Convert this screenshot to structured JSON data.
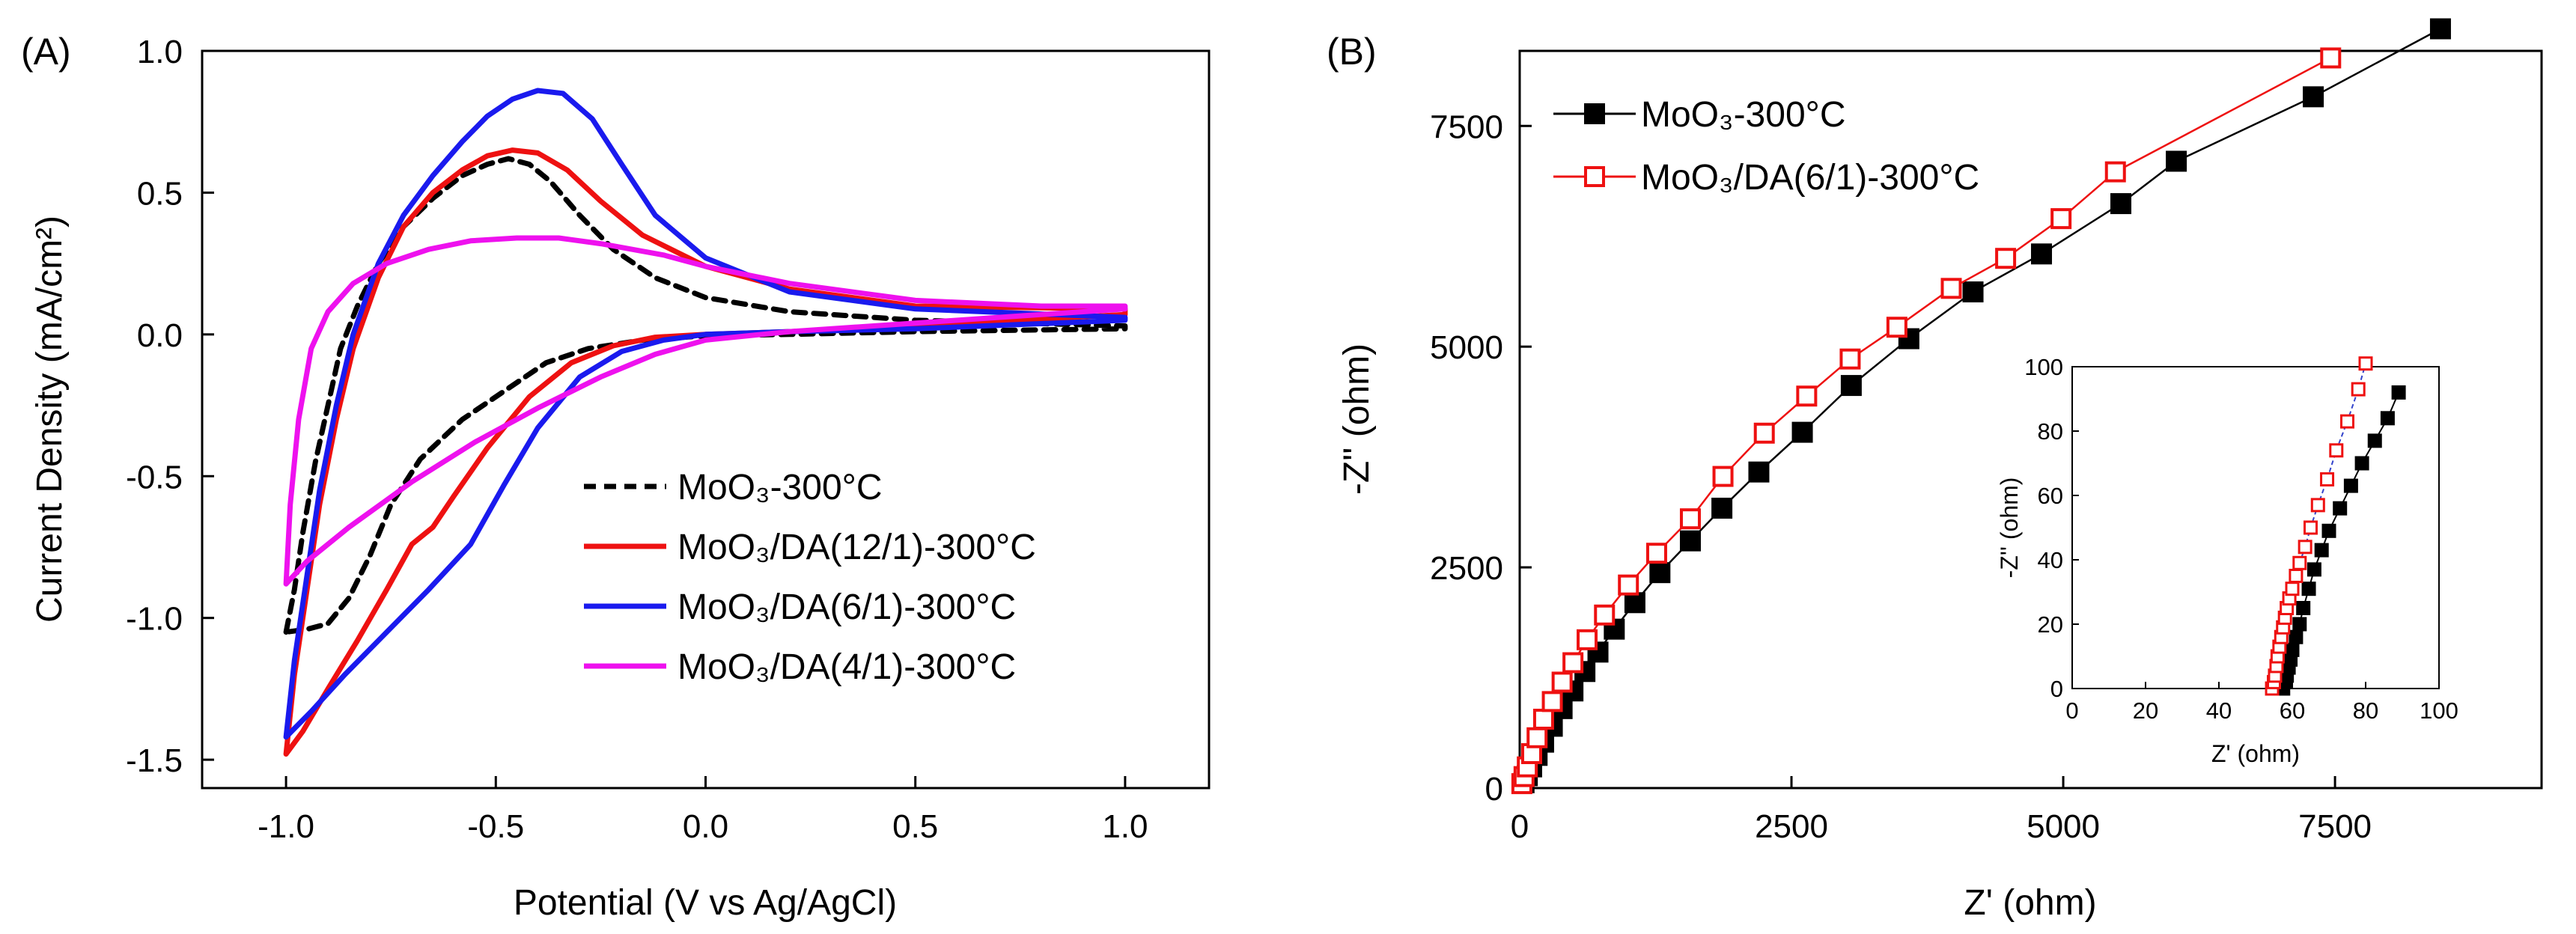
{
  "chart_data": [
    {
      "panel_label": "(A)",
      "type": "line",
      "title": "",
      "xlabel": "Potential (V vs Ag/AgCl)",
      "ylabel": "Current Density (mA/cm²)",
      "xlim": [
        -1.2,
        1.2
      ],
      "ylim": [
        -1.6,
        1.0
      ],
      "xticks": [
        -1.0,
        -0.5,
        0.0,
        0.5,
        1.0
      ],
      "xtick_labels": [
        "-1.0",
        "-0.5",
        "0.0",
        "0.5",
        "1.0"
      ],
      "yticks": [
        1.0,
        0.5,
        0.0,
        -0.5,
        -1.0,
        -1.5
      ],
      "ytick_labels": [
        "1.0",
        "0.5",
        "0.0",
        "-0.5",
        "-1.0",
        "-1.5"
      ],
      "legend_position": "bottom-right",
      "series": [
        {
          "name": "MoO₃-300°C",
          "color": "#000000",
          "dash": "dashed",
          "points": [
            [
              -1.0,
              -1.05
            ],
            [
              -0.98,
              -0.9
            ],
            [
              -0.96,
              -0.7
            ],
            [
              -0.93,
              -0.45
            ],
            [
              -0.9,
              -0.25
            ],
            [
              -0.87,
              -0.05
            ],
            [
              -0.83,
              0.1
            ],
            [
              -0.78,
              0.25
            ],
            [
              -0.72,
              0.38
            ],
            [
              -0.65,
              0.48
            ],
            [
              -0.58,
              0.56
            ],
            [
              -0.52,
              0.6
            ],
            [
              -0.47,
              0.62
            ],
            [
              -0.42,
              0.6
            ],
            [
              -0.37,
              0.54
            ],
            [
              -0.3,
              0.42
            ],
            [
              -0.22,
              0.3
            ],
            [
              -0.12,
              0.2
            ],
            [
              0.0,
              0.13
            ],
            [
              0.2,
              0.08
            ],
            [
              0.5,
              0.05
            ],
            [
              1.0,
              0.03
            ],
            [
              1.0,
              0.02
            ],
            [
              0.5,
              0.01
            ],
            [
              0.2,
              0.0
            ],
            [
              0.0,
              -0.005
            ],
            [
              -0.15,
              -0.02
            ],
            [
              -0.28,
              -0.05
            ],
            [
              -0.38,
              -0.1
            ],
            [
              -0.48,
              -0.2
            ],
            [
              -0.58,
              -0.3
            ],
            [
              -0.68,
              -0.44
            ],
            [
              -0.75,
              -0.6
            ],
            [
              -0.8,
              -0.78
            ],
            [
              -0.85,
              -0.93
            ],
            [
              -0.9,
              -1.02
            ],
            [
              -0.95,
              -1.04
            ],
            [
              -1.0,
              -1.05
            ]
          ]
        },
        {
          "name": "MoO₃/DA(12/1)-300°C",
          "color": "#ee1111",
          "dash": "solid",
          "points": [
            [
              -1.0,
              -1.48
            ],
            [
              -0.98,
              -1.2
            ],
            [
              -0.95,
              -0.9
            ],
            [
              -0.92,
              -0.6
            ],
            [
              -0.88,
              -0.3
            ],
            [
              -0.84,
              -0.05
            ],
            [
              -0.78,
              0.2
            ],
            [
              -0.72,
              0.38
            ],
            [
              -0.65,
              0.5
            ],
            [
              -0.58,
              0.58
            ],
            [
              -0.52,
              0.63
            ],
            [
              -0.46,
              0.65
            ],
            [
              -0.4,
              0.64
            ],
            [
              -0.33,
              0.58
            ],
            [
              -0.25,
              0.47
            ],
            [
              -0.15,
              0.35
            ],
            [
              0.0,
              0.24
            ],
            [
              0.2,
              0.16
            ],
            [
              0.5,
              0.1
            ],
            [
              1.0,
              0.09
            ],
            [
              1.0,
              0.07
            ],
            [
              0.5,
              0.03
            ],
            [
              0.2,
              0.01
            ],
            [
              0.0,
              0.0
            ],
            [
              -0.12,
              -0.01
            ],
            [
              -0.22,
              -0.04
            ],
            [
              -0.32,
              -0.1
            ],
            [
              -0.42,
              -0.22
            ],
            [
              -0.52,
              -0.4
            ],
            [
              -0.6,
              -0.57
            ],
            [
              -0.65,
              -0.68
            ],
            [
              -0.7,
              -0.74
            ],
            [
              -0.76,
              -0.9
            ],
            [
              -0.83,
              -1.08
            ],
            [
              -0.9,
              -1.25
            ],
            [
              -0.96,
              -1.4
            ],
            [
              -1.0,
              -1.48
            ]
          ]
        },
        {
          "name": "MoO₃/DA(6/1)-300°C",
          "color": "#1a1aee",
          "dash": "solid",
          "points": [
            [
              -1.0,
              -1.42
            ],
            [
              -0.98,
              -1.15
            ],
            [
              -0.95,
              -0.85
            ],
            [
              -0.92,
              -0.55
            ],
            [
              -0.88,
              -0.25
            ],
            [
              -0.84,
              0.0
            ],
            [
              -0.78,
              0.25
            ],
            [
              -0.72,
              0.42
            ],
            [
              -0.65,
              0.56
            ],
            [
              -0.58,
              0.68
            ],
            [
              -0.52,
              0.77
            ],
            [
              -0.46,
              0.83
            ],
            [
              -0.4,
              0.86
            ],
            [
              -0.34,
              0.85
            ],
            [
              -0.27,
              0.76
            ],
            [
              -0.2,
              0.6
            ],
            [
              -0.12,
              0.42
            ],
            [
              0.0,
              0.27
            ],
            [
              0.2,
              0.15
            ],
            [
              0.5,
              0.09
            ],
            [
              1.0,
              0.06
            ],
            [
              1.0,
              0.05
            ],
            [
              0.5,
              0.02
            ],
            [
              0.2,
              0.01
            ],
            [
              0.0,
              0.0
            ],
            [
              -0.1,
              -0.02
            ],
            [
              -0.2,
              -0.06
            ],
            [
              -0.3,
              -0.15
            ],
            [
              -0.4,
              -0.33
            ],
            [
              -0.48,
              -0.53
            ],
            [
              -0.56,
              -0.74
            ],
            [
              -0.66,
              -0.9
            ],
            [
              -0.76,
              -1.05
            ],
            [
              -0.86,
              -1.2
            ],
            [
              -0.94,
              -1.33
            ],
            [
              -1.0,
              -1.42
            ]
          ]
        },
        {
          "name": "MoO₃/DA(4/1)-300°C",
          "color": "#ee11ee",
          "dash": "solid",
          "points": [
            [
              -1.0,
              -0.88
            ],
            [
              -0.99,
              -0.6
            ],
            [
              -0.97,
              -0.3
            ],
            [
              -0.94,
              -0.05
            ],
            [
              -0.9,
              0.08
            ],
            [
              -0.84,
              0.18
            ],
            [
              -0.76,
              0.25
            ],
            [
              -0.66,
              0.3
            ],
            [
              -0.56,
              0.33
            ],
            [
              -0.45,
              0.34
            ],
            [
              -0.35,
              0.34
            ],
            [
              -0.25,
              0.32
            ],
            [
              -0.1,
              0.28
            ],
            [
              0.0,
              0.24
            ],
            [
              0.2,
              0.18
            ],
            [
              0.5,
              0.12
            ],
            [
              0.8,
              0.1
            ],
            [
              1.0,
              0.1
            ],
            [
              1.0,
              0.09
            ],
            [
              0.8,
              0.07
            ],
            [
              0.5,
              0.04
            ],
            [
              0.2,
              0.01
            ],
            [
              0.0,
              -0.02
            ],
            [
              -0.12,
              -0.07
            ],
            [
              -0.25,
              -0.15
            ],
            [
              -0.4,
              -0.26
            ],
            [
              -0.55,
              -0.38
            ],
            [
              -0.7,
              -0.52
            ],
            [
              -0.85,
              -0.68
            ],
            [
              -0.95,
              -0.8
            ],
            [
              -1.0,
              -0.88
            ]
          ]
        }
      ]
    },
    {
      "panel_label": "(B)",
      "type": "scatter",
      "title": "",
      "xlabel": "Z' (ohm)",
      "ylabel": "-Z'' (ohm)",
      "xlim": [
        0,
        9400
      ],
      "ylim": [
        0,
        8350
      ],
      "xticks": [
        0,
        2500,
        5000,
        7500
      ],
      "xtick_labels": [
        "0",
        "2500",
        "5000",
        "7500"
      ],
      "yticks": [
        0,
        2500,
        5000,
        7500
      ],
      "ytick_labels": [
        "0",
        "2500",
        "5000",
        "7500"
      ],
      "legend_position": "top-left",
      "series": [
        {
          "name": "MoO₃-300°C",
          "color": "#000000",
          "marker": "filled-square",
          "points": [
            [
              40,
              60
            ],
            [
              70,
              140
            ],
            [
              110,
              240
            ],
            [
              160,
              370
            ],
            [
              220,
              520
            ],
            [
              300,
              700
            ],
            [
              390,
              900
            ],
            [
              490,
              1100
            ],
            [
              600,
              1320
            ],
            [
              720,
              1540
            ],
            [
              870,
              1800
            ],
            [
              1060,
              2100
            ],
            [
              1290,
              2440
            ],
            [
              1570,
              2800
            ],
            [
              1860,
              3170
            ],
            [
              2200,
              3580
            ],
            [
              2600,
              4030
            ],
            [
              3050,
              4560
            ],
            [
              3580,
              5090
            ],
            [
              4170,
              5620
            ],
            [
              4800,
              6050
            ],
            [
              5530,
              6620
            ],
            [
              6040,
              7100
            ],
            [
              7300,
              7830
            ],
            [
              8470,
              8600
            ]
          ]
        },
        {
          "name": "MoO₃/DA(6/1)-300°C",
          "color": "#ee1111",
          "marker": "open-square",
          "points": [
            [
              20,
              50
            ],
            [
              40,
              130
            ],
            [
              70,
              240
            ],
            [
              110,
              390
            ],
            [
              160,
              570
            ],
            [
              220,
              780
            ],
            [
              300,
              980
            ],
            [
              390,
              1200
            ],
            [
              490,
              1420
            ],
            [
              620,
              1680
            ],
            [
              780,
              1960
            ],
            [
              1000,
              2300
            ],
            [
              1260,
              2660
            ],
            [
              1570,
              3050
            ],
            [
              1870,
              3530
            ],
            [
              2250,
              4020
            ],
            [
              2640,
              4440
            ],
            [
              3040,
              4860
            ],
            [
              3470,
              5220
            ],
            [
              3970,
              5660
            ],
            [
              4470,
              6000
            ],
            [
              4980,
              6450
            ],
            [
              5480,
              6980
            ],
            [
              7460,
              8270
            ]
          ]
        }
      ],
      "inset": {
        "xlabel": "Z' (ohm)",
        "ylabel": "-Z'' (ohm)",
        "xlim": [
          0,
          100
        ],
        "ylim": [
          0,
          100
        ],
        "xticks": [
          0,
          20,
          40,
          60,
          80,
          100
        ],
        "xtick_labels": [
          "0",
          "20",
          "40",
          "60",
          "80",
          "100"
        ],
        "yticks": [
          0,
          20,
          40,
          60,
          80,
          100
        ],
        "ytick_labels": [
          "0",
          "20",
          "40",
          "60",
          "80",
          "100"
        ],
        "series": [
          {
            "name": "MoO₃-300°C",
            "color": "#000000",
            "marker": "filled-square",
            "points": [
              [
                57.5,
                0
              ],
              [
                58,
                2
              ],
              [
                58.5,
                4
              ],
              [
                59,
                6.5
              ],
              [
                59.5,
                9
              ],
              [
                60,
                12
              ],
              [
                61,
                16
              ],
              [
                62,
                20
              ],
              [
                63,
                25
              ],
              [
                64.5,
                31
              ],
              [
                66,
                37
              ],
              [
                68,
                43
              ],
              [
                70,
                49
              ],
              [
                73,
                56
              ],
              [
                76,
                63
              ],
              [
                79,
                70
              ],
              [
                82.5,
                77
              ],
              [
                86,
                84
              ],
              [
                89,
                92
              ]
            ]
          },
          {
            "name": "MoO₃/DA(6/1)-300°C",
            "color": "#ee1111",
            "marker": "open-square",
            "points": [
              [
                54.5,
                0
              ],
              [
                55,
                2
              ],
              [
                55.3,
                4
              ],
              [
                55.7,
                7
              ],
              [
                56,
                10
              ],
              [
                56.5,
                13
              ],
              [
                57,
                16
              ],
              [
                57.5,
                19
              ],
              [
                58,
                22
              ],
              [
                58.5,
                25
              ],
              [
                59.2,
                28
              ],
              [
                60,
                31
              ],
              [
                61,
                35
              ],
              [
                62,
                39
              ],
              [
                63.5,
                44
              ],
              [
                65,
                50
              ],
              [
                67,
                57
              ],
              [
                69.5,
                65
              ],
              [
                72,
                74
              ],
              [
                75,
                83
              ],
              [
                78,
                93
              ],
              [
                80,
                101
              ]
            ]
          }
        ]
      }
    }
  ]
}
